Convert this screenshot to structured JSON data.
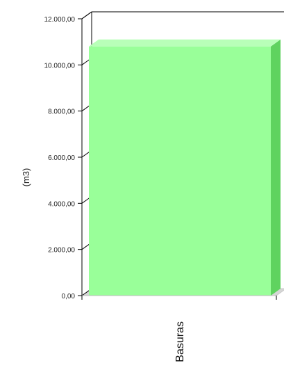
{
  "chart_data": {
    "type": "bar",
    "style": "3d",
    "categories": [
      "Basuras"
    ],
    "values": [
      10800
    ],
    "ylabel": "(m3)",
    "xlabel": "",
    "ylim": [
      0,
      12000
    ],
    "yticks": [
      0,
      2000,
      4000,
      6000,
      8000,
      10000,
      12000
    ],
    "ytick_labels": [
      "0,00",
      "2.000,00",
      "4.000,00",
      "6.000,00",
      "8.000,00",
      "10.000,00",
      "12.000,00"
    ],
    "grid": false,
    "legend": "none",
    "colors": {
      "bar_front": "#99ff99",
      "bar_top": "#b8ffb8",
      "bar_side": "#5fd35f",
      "axis": "#000000"
    }
  }
}
